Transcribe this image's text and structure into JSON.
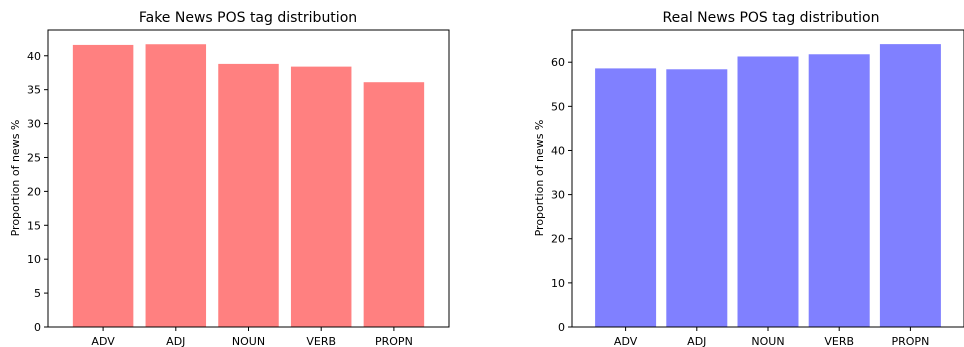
{
  "chart_data": [
    {
      "type": "bar",
      "title": "Fake News POS tag distribution",
      "xlabel": "",
      "ylabel": "Proportion of news %",
      "categories": [
        "ADV",
        "ADJ",
        "NOUN",
        "VERB",
        "PROPN"
      ],
      "values": [
        41.6,
        41.7,
        38.8,
        38.4,
        36.1
      ],
      "ylim": [
        0,
        43.8
      ],
      "yticks": [
        0,
        5,
        10,
        15,
        20,
        25,
        30,
        35,
        40
      ],
      "color": "#ff8080",
      "grid": false
    },
    {
      "type": "bar",
      "title": "Real News POS tag distribution",
      "xlabel": "",
      "ylabel": "Proportion of news %",
      "categories": [
        "ADV",
        "ADJ",
        "NOUN",
        "VERB",
        "PROPN"
      ],
      "values": [
        58.6,
        58.4,
        61.3,
        61.8,
        64.1
      ],
      "ylim": [
        0,
        67.3
      ],
      "yticks": [
        0,
        10,
        20,
        30,
        40,
        50,
        60
      ],
      "color": "#8080ff",
      "grid": false
    }
  ]
}
